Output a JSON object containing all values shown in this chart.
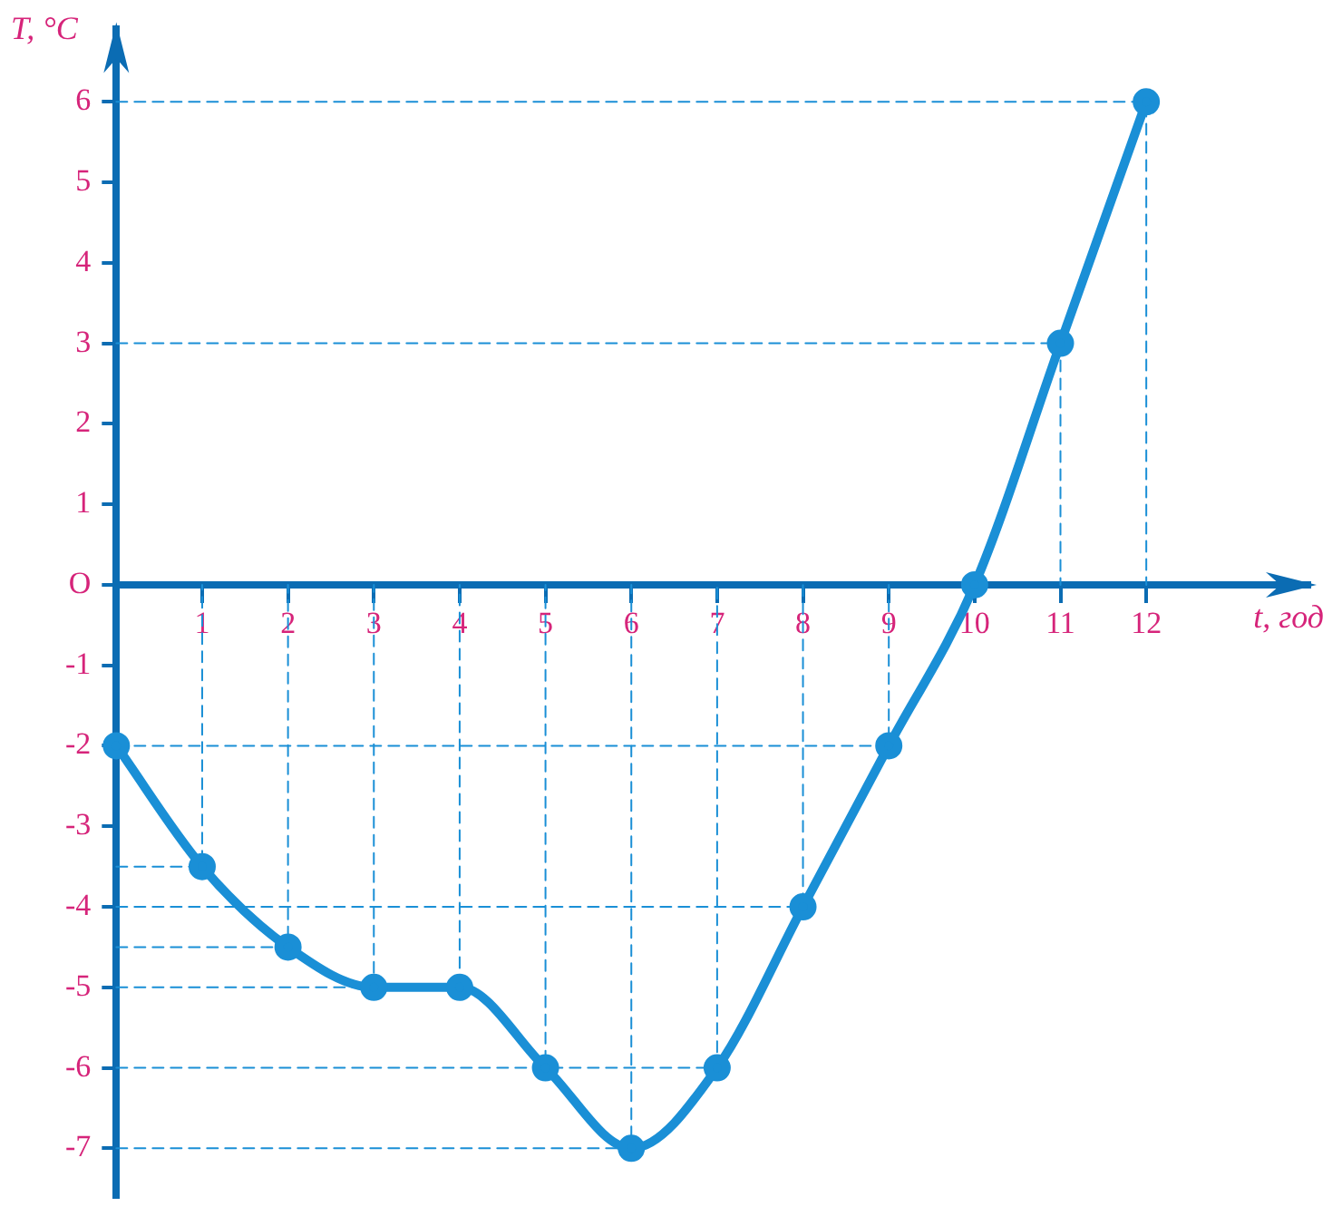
{
  "chart_data": {
    "type": "line",
    "xlabel": "t, год",
    "ylabel": "T, °C",
    "series": [
      {
        "color": "#1a8fd6",
        "marker": "circle",
        "line_style": "solid",
        "x": [
          0,
          1,
          2,
          3,
          4,
          5,
          6,
          7,
          8,
          9,
          10,
          11,
          12
        ],
        "values": [
          -2,
          -3.5,
          -4.5,
          -5,
          -5,
          -6,
          -7,
          -6,
          -4,
          -2,
          0,
          3,
          6
        ]
      },
      {
        "color": "#1a8fd6",
        "marker": "none",
        "line_style": "dashed",
        "x": [
          0,
          1,
          1,
          null,
          0,
          2,
          2,
          null,
          0,
          3,
          3,
          null,
          0,
          4,
          4,
          null,
          0,
          5,
          5,
          null,
          0,
          6,
          6,
          null,
          0,
          7,
          7,
          null,
          0,
          8,
          8,
          null,
          0,
          9,
          9,
          null,
          0,
          11,
          11,
          null,
          0,
          12,
          12
        ],
        "values": [
          -3.5,
          -3.5,
          0,
          null,
          -4.5,
          -4.5,
          0,
          null,
          -5,
          -5,
          0,
          null,
          -5,
          -5,
          0,
          null,
          -6,
          -6,
          0,
          null,
          -7,
          -7,
          0,
          null,
          -6,
          -6,
          0,
          null,
          -4,
          -4,
          0,
          null,
          -2,
          -2,
          0,
          null,
          3,
          3,
          0,
          null,
          6,
          6,
          0
        ]
      }
    ],
    "grid": false,
    "legend": false,
    "xlim": [
      0,
      13.9
    ],
    "ylim": [
      -7.6,
      6.9
    ],
    "xticks": [
      1,
      2,
      3,
      4,
      5,
      6,
      7,
      8,
      9,
      10,
      11,
      12
    ],
    "yticks": [
      -7,
      -6,
      -5,
      -4,
      -3,
      -2,
      -1,
      {
        "value": 0,
        "label": "O"
      },
      1,
      2,
      3,
      4,
      5,
      6
    ]
  }
}
